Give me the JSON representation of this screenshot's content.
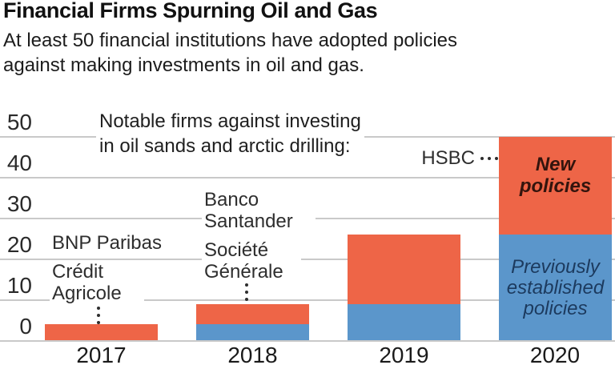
{
  "header": {
    "title": "Financial Firms Spurning Oil and Gas",
    "subtitle_lines": [
      "At least 50 financial institutions have adopted policies",
      "against making investments in oil and gas."
    ]
  },
  "annotations": {
    "notable_lines": [
      "Notable firms against investing",
      "in oil sands and arctic drilling:"
    ],
    "firms": {
      "bnp_paribas": "BNP Paribas",
      "credit_agricole": "Crédit Agricole",
      "banco_santander": "Banco Santander",
      "societe_generale": "Société Générale",
      "hsbc": "HSBC"
    }
  },
  "colors": {
    "new_policies_fill": "#ee6547",
    "previously_established_fill": "#5b96cb",
    "new_policies_text": "#33140d",
    "previously_established_text": "#1c3a5e",
    "gridline": "#c9c9c9"
  },
  "chart_data": {
    "type": "bar",
    "stacked": true,
    "title": "Financial Firms Spurning Oil and Gas",
    "categories": [
      "2017",
      "2018",
      "2019",
      "2020"
    ],
    "series": [
      {
        "name": "Previously established policies",
        "values": [
          0,
          4,
          9,
          26
        ]
      },
      {
        "name": "New policies",
        "values": [
          4,
          5,
          17,
          24
        ]
      }
    ],
    "totals": [
      4,
      9,
      26,
      50
    ],
    "xlabel": "",
    "ylabel": "",
    "ylim": [
      0,
      50
    ],
    "yticks": [
      0,
      10,
      20,
      30,
      40,
      50
    ],
    "grid": true,
    "legend_position": "inside-last-bar"
  }
}
